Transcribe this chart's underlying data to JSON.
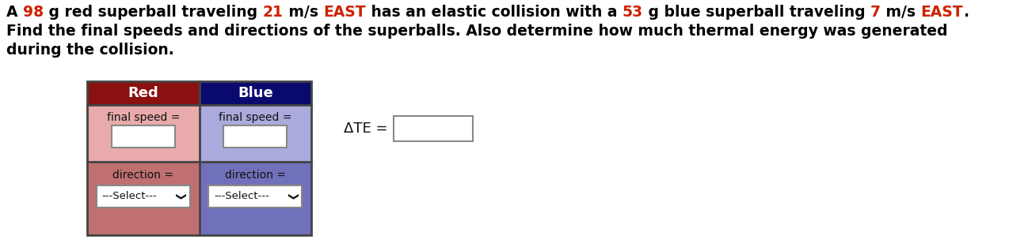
{
  "title_parts": [
    {
      "text": "A ",
      "color": "#000000"
    },
    {
      "text": "98",
      "color": "#cc2200"
    },
    {
      "text": " g red superball traveling ",
      "color": "#000000"
    },
    {
      "text": "21",
      "color": "#cc2200"
    },
    {
      "text": " m/s ",
      "color": "#000000"
    },
    {
      "text": "EAST",
      "color": "#cc2200"
    },
    {
      "text": " has an elastic collision with a ",
      "color": "#000000"
    },
    {
      "text": "53",
      "color": "#cc2200"
    },
    {
      "text": " g blue superball traveling ",
      "color": "#000000"
    },
    {
      "text": "7",
      "color": "#cc2200"
    },
    {
      "text": " m/s ",
      "color": "#000000"
    },
    {
      "text": "EAST",
      "color": "#cc2200"
    },
    {
      "text": ".",
      "color": "#000000"
    }
  ],
  "line2": "Find the final speeds and directions of the superballs. Also determine how much thermal energy was generated",
  "line3": "during the collision.",
  "red_header_color": "#8B1010",
  "blue_header_color": "#0A0A6E",
  "red_body_color": "#E8AAAA",
  "blue_body_color": "#AAAADD",
  "red_direction_color": "#C07070",
  "blue_direction_color": "#7070BB",
  "header_text_color": "#FFFFFF",
  "red_label": "Red",
  "blue_label": "Blue",
  "final_speed_label": "final speed =",
  "direction_label": "direction =",
  "select_label": "---Select---",
  "ate_label": "ΔTE =",
  "fig_width": 12.79,
  "fig_height": 3.08,
  "dpi": 100
}
